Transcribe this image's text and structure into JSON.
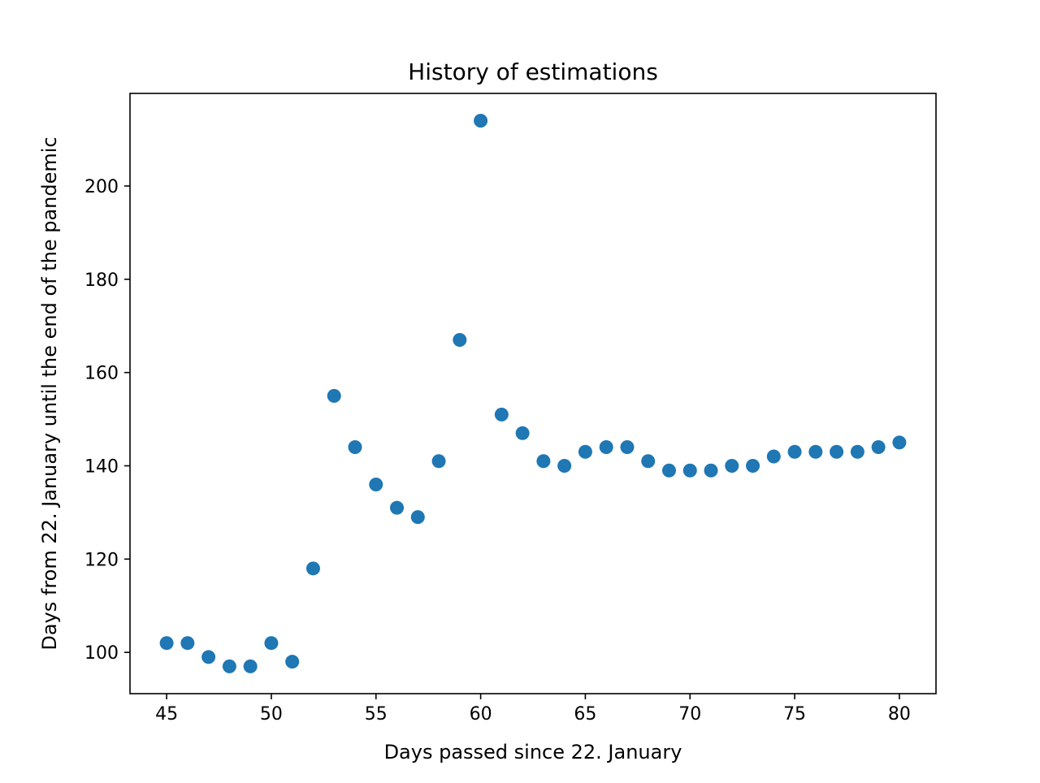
{
  "chart_data": {
    "type": "scatter",
    "title": "History of estimations",
    "xlabel": "Days passed since 22. January",
    "ylabel": "Days from 22. January until the end of the pandemic",
    "xlim": [
      43.25,
      81.75
    ],
    "ylim": [
      91.15,
      219.85
    ],
    "xticks": [
      45,
      50,
      55,
      60,
      65,
      70,
      75,
      80
    ],
    "yticks": [
      100,
      120,
      140,
      160,
      180,
      200
    ],
    "grid": false,
    "legend": "none",
    "marker_color": "#1f77b4",
    "series": [
      {
        "x": [
          45,
          46,
          47,
          48,
          49,
          50,
          51,
          52,
          53,
          54,
          55,
          56,
          57,
          58,
          59,
          60,
          61,
          62,
          63,
          64,
          65,
          66,
          67,
          68,
          69,
          70,
          71,
          72,
          73,
          74,
          75,
          76,
          77,
          78,
          79,
          80
        ],
        "y": [
          102,
          102,
          99,
          97,
          97,
          102,
          98,
          118,
          155,
          144,
          136,
          131,
          129,
          141,
          167,
          214,
          151,
          147,
          141,
          140,
          143,
          144,
          144,
          141,
          139,
          139,
          139,
          140,
          140,
          142,
          143,
          143,
          143,
          143,
          144,
          145
        ]
      }
    ]
  }
}
